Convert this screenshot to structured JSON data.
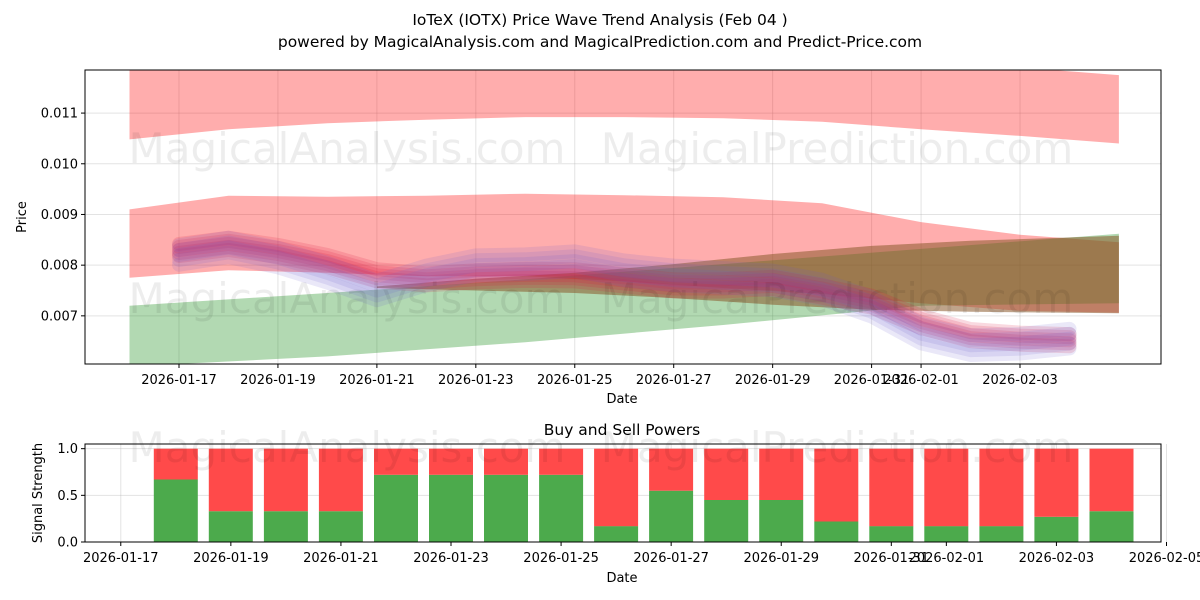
{
  "chart_data": [
    {
      "type": "area",
      "title": "IoTeX (IOTX) Price Wave Trend Analysis (Feb 04 )",
      "subtitle": "powered by MagicalAnalysis.com and MagicalPrediction.com and Predict-Price.com",
      "xlabel": "Date",
      "ylabel": "Price",
      "ylim": [
        0.00605,
        0.01185
      ],
      "yticks": [
        "0.007",
        "0.008",
        "0.009",
        "0.010",
        "0.011"
      ],
      "xticks": [
        "2026-01-17",
        "2026-01-19",
        "2026-01-21",
        "2026-01-23",
        "2026-01-25",
        "2026-01-27",
        "2026-01-29",
        "2026-01-31",
        "2026-02-01",
        "2026-02-03"
      ],
      "grid": true,
      "watermarks": [
        "MagicalAnalysis.com",
        "MagicalPrediction.com"
      ],
      "bands": [
        {
          "name": "upper red band",
          "color": "#ff0000",
          "x": [
            "2026-01-16",
            "2026-01-18",
            "2026-01-20",
            "2026-01-22",
            "2026-01-24",
            "2026-01-26",
            "2026-01-28",
            "2026-01-30",
            "2026-02-01",
            "2026-02-03",
            "2026-02-05"
          ],
          "upper": [
            0.0119,
            0.0119,
            0.0119,
            0.0119,
            0.0119,
            0.0119,
            0.0119,
            0.0119,
            0.0119,
            0.0119,
            0.01175
          ],
          "lower": [
            0.01048,
            0.01068,
            0.0108,
            0.01087,
            0.01092,
            0.01092,
            0.0109,
            0.01083,
            0.01068,
            0.01055,
            0.0104
          ]
        },
        {
          "name": "middle red band",
          "color": "#ff0000",
          "x": [
            "2026-01-16",
            "2026-01-18",
            "2026-01-20",
            "2026-01-22",
            "2026-01-24",
            "2026-01-26",
            "2026-01-28",
            "2026-01-30",
            "2026-02-01",
            "2026-02-03",
            "2026-02-05"
          ],
          "upper": [
            0.0091,
            0.00937,
            0.00935,
            0.00937,
            0.00941,
            0.00938,
            0.00934,
            0.00922,
            0.00885,
            0.0086,
            0.00845
          ],
          "lower": [
            0.00775,
            0.0079,
            0.00785,
            0.00778,
            0.00778,
            0.00768,
            0.00755,
            0.00743,
            0.00725,
            0.0071,
            0.00706
          ]
        },
        {
          "name": "green band",
          "color": "#008000",
          "x": [
            "2026-01-16",
            "2026-01-20",
            "2026-01-24",
            "2026-01-28",
            "2026-02-01",
            "2026-02-05"
          ],
          "upper": [
            0.0072,
            0.00745,
            0.00772,
            0.00802,
            0.00832,
            0.00862
          ],
          "lower": [
            0.006,
            0.0062,
            0.00648,
            0.00682,
            0.0072,
            0.00725
          ]
        },
        {
          "name": "brown band",
          "color": "#8b5a2b",
          "x": [
            "2026-01-21",
            "2026-01-23",
            "2026-01-25",
            "2026-01-27",
            "2026-01-29",
            "2026-01-31",
            "2026-02-02",
            "2026-02-05"
          ],
          "upper": [
            0.00758,
            0.00773,
            0.00785,
            0.00802,
            0.00822,
            0.00838,
            0.00848,
            0.00858
          ],
          "lower": [
            0.00755,
            0.0075,
            0.00745,
            0.00735,
            0.00722,
            0.00712,
            0.00708,
            0.00705
          ]
        }
      ],
      "series": [
        {
          "name": "wave trend",
          "color": "#dc143c",
          "x": [
            "2026-01-17",
            "2026-01-18",
            "2026-01-19",
            "2026-01-20",
            "2026-01-21",
            "2026-01-22",
            "2026-01-23",
            "2026-01-24",
            "2026-01-25",
            "2026-01-26",
            "2026-01-27",
            "2026-01-28",
            "2026-01-29",
            "2026-01-30",
            "2026-01-31",
            "2026-02-01",
            "2026-02-02",
            "2026-02-03",
            "2026-02-04"
          ],
          "values": [
            0.0083,
            0.00842,
            0.00828,
            0.00808,
            0.0078,
            0.00772,
            0.00778,
            0.00781,
            0.0078,
            0.0077,
            0.0076,
            0.0076,
            0.00765,
            0.00748,
            0.00728,
            0.00688,
            0.00662,
            0.00655,
            0.00652
          ]
        },
        {
          "name": "blue wave",
          "color": "#6a5acd",
          "x": [
            "2026-01-17",
            "2026-01-18",
            "2026-01-19",
            "2026-01-20",
            "2026-01-21",
            "2026-01-22",
            "2026-01-23",
            "2026-01-24",
            "2026-01-25",
            "2026-01-26",
            "2026-01-27",
            "2026-01-28",
            "2026-01-29",
            "2026-01-30",
            "2026-01-31",
            "2026-02-01",
            "2026-02-02",
            "2026-02-03",
            "2026-02-04"
          ],
          "values": [
            0.0082,
            0.00835,
            0.00815,
            0.00785,
            0.0075,
            0.0078,
            0.008,
            0.00802,
            0.00808,
            0.0079,
            0.0078,
            0.00775,
            0.0077,
            0.00752,
            0.00718,
            0.00665,
            0.00642,
            0.00645,
            0.00655
          ]
        }
      ]
    },
    {
      "type": "bar",
      "title": "Buy and Sell Powers",
      "xlabel": "Date",
      "ylabel": "Signal Strength",
      "ylim": [
        0,
        1.05
      ],
      "yticks": [
        "0.0",
        "0.5",
        "1.0"
      ],
      "xticks": [
        "2026-01-17",
        "2026-01-19",
        "2026-01-21",
        "2026-01-23",
        "2026-01-25",
        "2026-01-27",
        "2026-01-29",
        "2026-01-31",
        "2026-02-01",
        "2026-02-03",
        "2026-02-05"
      ],
      "categories": [
        "2026-01-18",
        "2026-01-19",
        "2026-01-20",
        "2026-01-21",
        "2026-01-22",
        "2026-01-23",
        "2026-01-24",
        "2026-01-25",
        "2026-01-26",
        "2026-01-27",
        "2026-01-28",
        "2026-01-29",
        "2026-01-30",
        "2026-01-31",
        "2026-02-01",
        "2026-02-02",
        "2026-02-03",
        "2026-02-04"
      ],
      "series": [
        {
          "name": "Buy",
          "color": "#4caa4c",
          "values": [
            0.67,
            0.33,
            0.33,
            0.33,
            0.72,
            0.72,
            0.72,
            0.72,
            0.17,
            0.55,
            0.45,
            0.45,
            0.22,
            0.17,
            0.17,
            0.17,
            0.27,
            0.33
          ]
        },
        {
          "name": "Sell",
          "color": "#ff4a4a",
          "values": [
            0.33,
            0.67,
            0.67,
            0.67,
            0.28,
            0.28,
            0.28,
            0.28,
            0.83,
            0.45,
            0.55,
            0.55,
            0.78,
            0.83,
            0.83,
            0.83,
            0.73,
            0.67
          ]
        }
      ]
    }
  ]
}
